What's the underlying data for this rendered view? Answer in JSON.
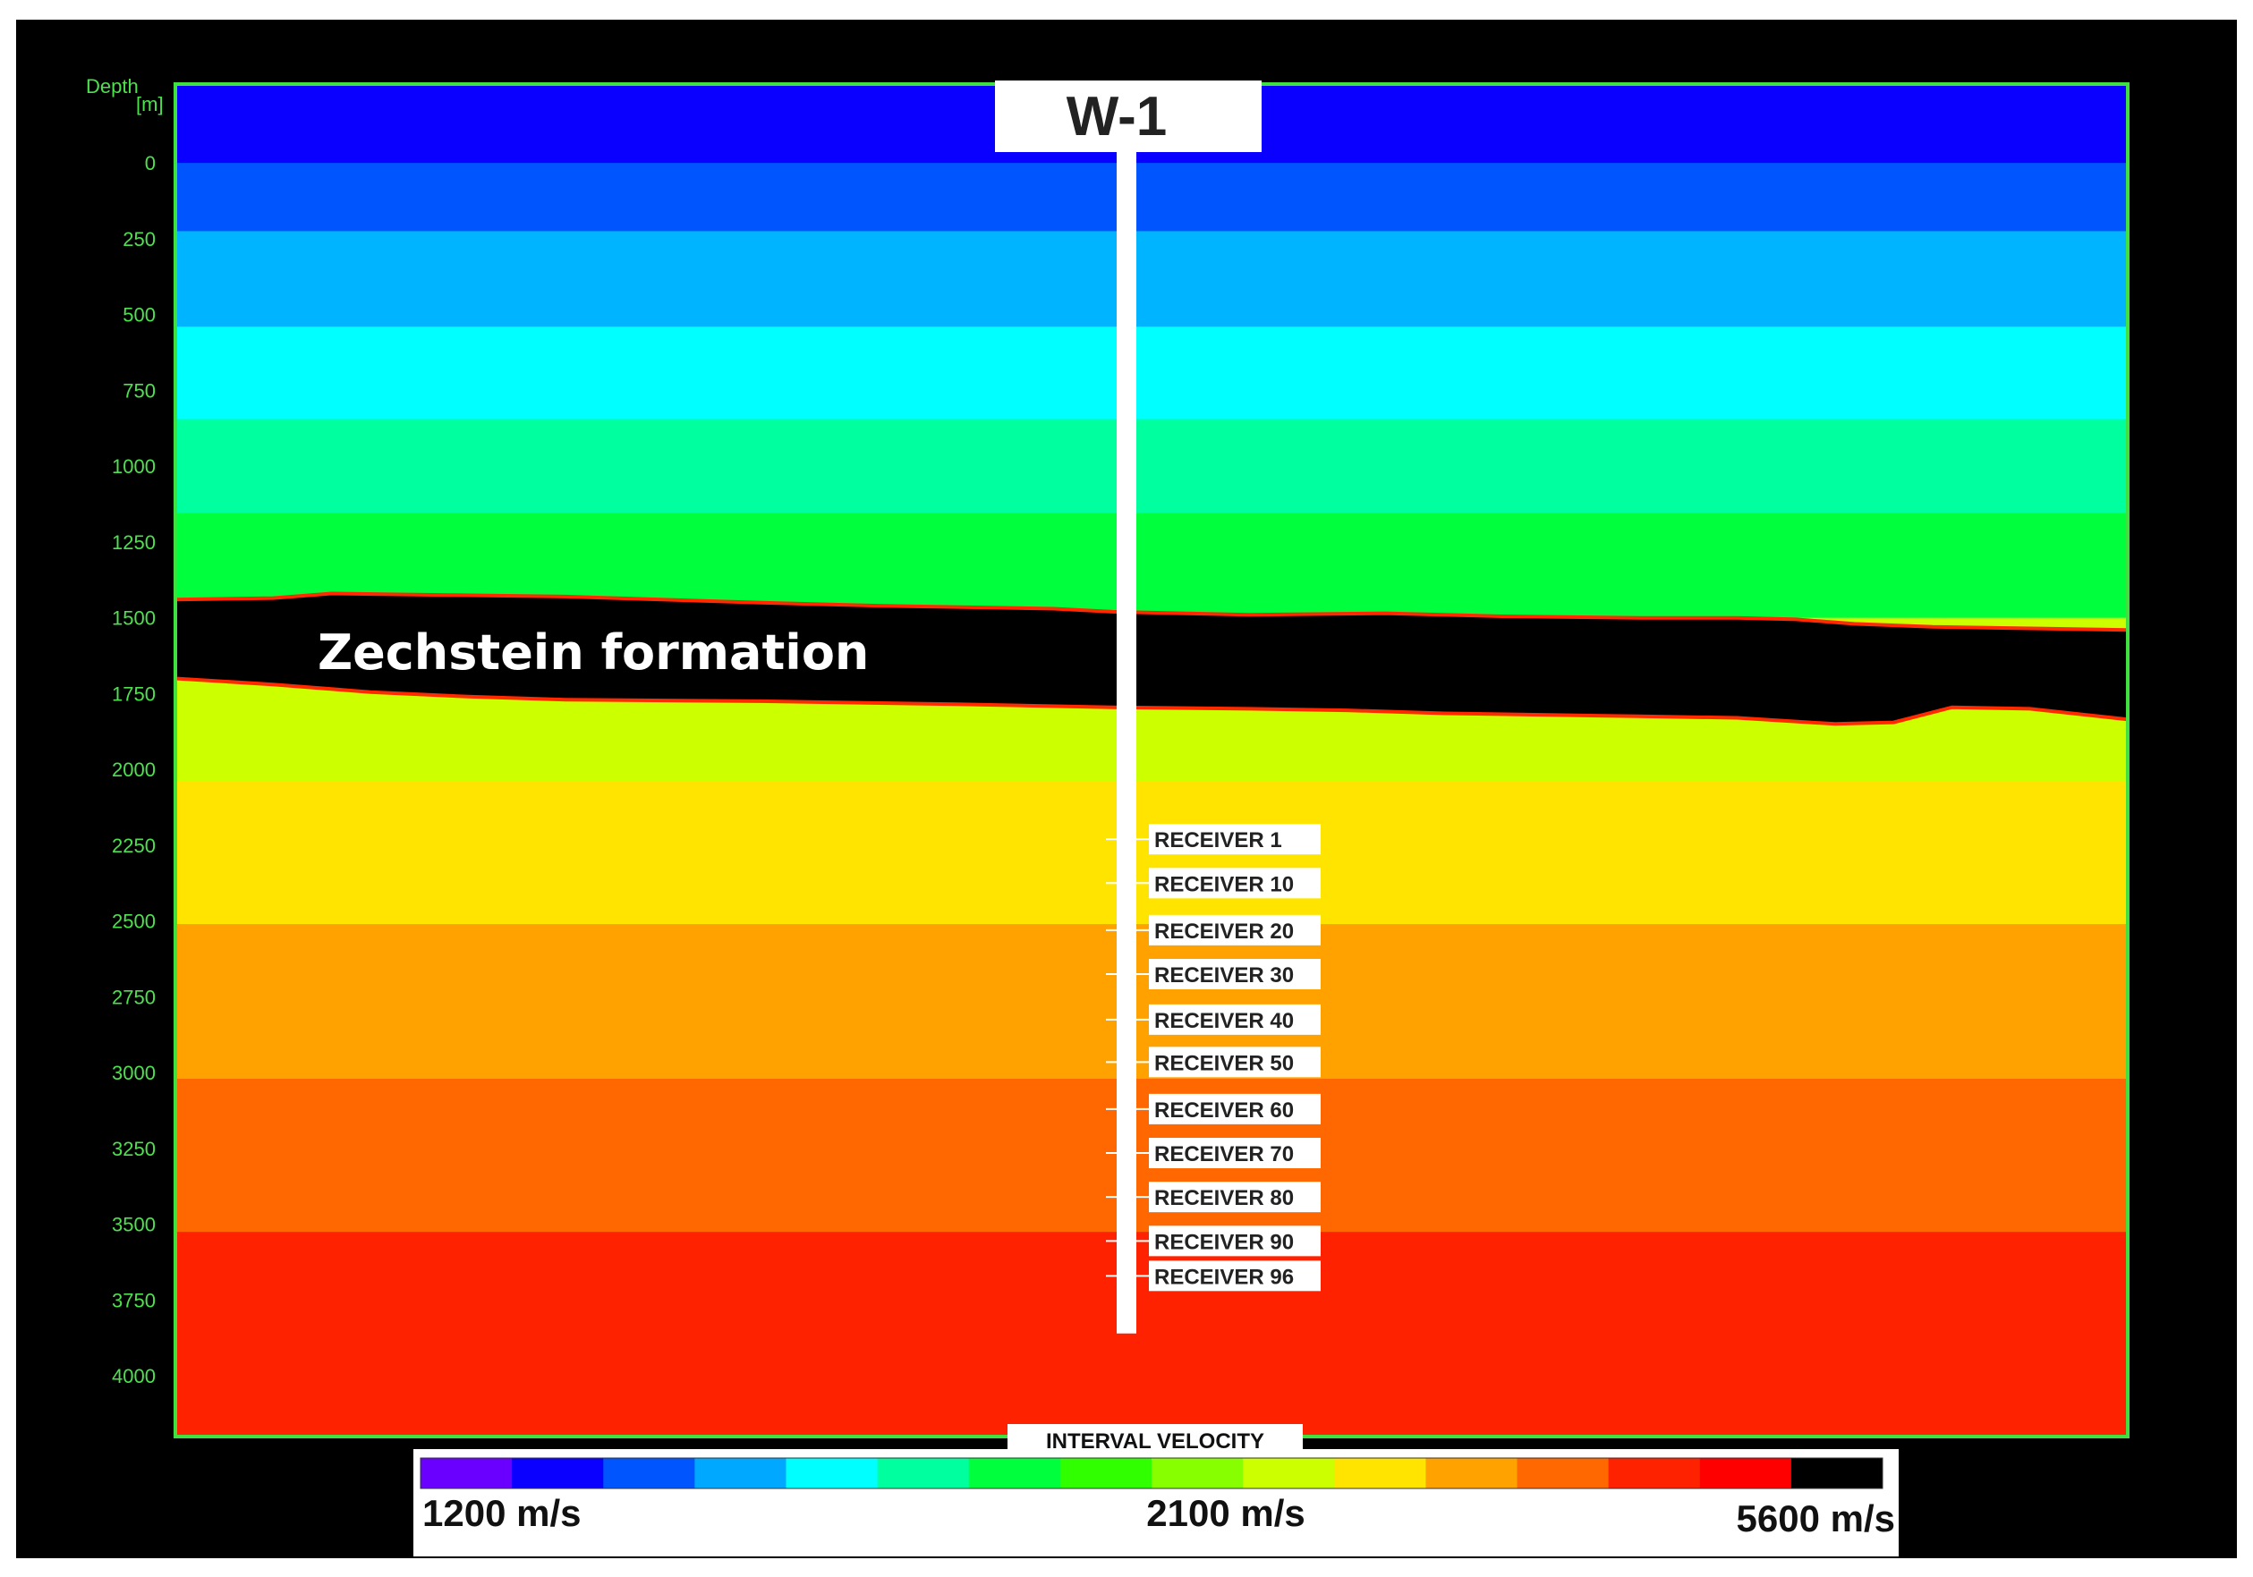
{
  "axis": {
    "title_line1": "Depth",
    "title_line2": "[m]",
    "depths": [
      0,
      250,
      500,
      750,
      1000,
      1250,
      1500,
      1750,
      2000,
      2250,
      2500,
      2750,
      3000,
      3250,
      3500,
      3750,
      4000
    ],
    "depth_labels": [
      "0",
      "250",
      "500",
      "750",
      "1000",
      "1250",
      "1500",
      "1750",
      "2000",
      "2250",
      "2500",
      "2750",
      "3000",
      "3250",
      "3500",
      "3750",
      "4000"
    ],
    "range_m": [
      -260,
      4200
    ]
  },
  "well": {
    "name": "W-1",
    "bottom_depth_m": 3860,
    "receivers": [
      {
        "label": "RECEIVER 1",
        "depth_m": 2230
      },
      {
        "label": "RECEIVER 10",
        "depth_m": 2375
      },
      {
        "label": "RECEIVER 20",
        "depth_m": 2530
      },
      {
        "label": "RECEIVER 30",
        "depth_m": 2675
      },
      {
        "label": "RECEIVER 40",
        "depth_m": 2825
      },
      {
        "label": "RECEIVER 50",
        "depth_m": 2965
      },
      {
        "label": "RECEIVER 60",
        "depth_m": 3120
      },
      {
        "label": "RECEIVER 70",
        "depth_m": 3265
      },
      {
        "label": "RECEIVER 80",
        "depth_m": 3410
      },
      {
        "label": "RECEIVER 90",
        "depth_m": 3555
      },
      {
        "label": "RECEIVER 96",
        "depth_m": 3670
      }
    ]
  },
  "layers": [
    {
      "top_m": -260,
      "bottom_m": 0,
      "color": "#0a00ff"
    },
    {
      "top_m": 0,
      "bottom_m": 225,
      "color": "#0055ff"
    },
    {
      "top_m": 225,
      "bottom_m": 540,
      "color": "#00b4ff"
    },
    {
      "top_m": 540,
      "bottom_m": 845,
      "color": "#00ffff"
    },
    {
      "top_m": 845,
      "bottom_m": 1155,
      "color": "#00ff9e"
    },
    {
      "top_m": 1155,
      "bottom_m": 1500,
      "color": "#00ff3c"
    },
    {
      "top_m": 1500,
      "bottom_m": 2040,
      "color": "#ccff00"
    },
    {
      "top_m": 2040,
      "bottom_m": 2510,
      "color": "#ffe400"
    },
    {
      "top_m": 2510,
      "bottom_m": 3020,
      "color": "#ffa200"
    },
    {
      "top_m": 3020,
      "bottom_m": 3525,
      "color": "#ff6800"
    },
    {
      "top_m": 3525,
      "bottom_m": 4200,
      "color": "#ff2200"
    }
  ],
  "zechstein": {
    "label": "Zechstein formation",
    "top_horizon": {
      "x_fraction": [
        0,
        0.05,
        0.08,
        0.14,
        0.2,
        0.3,
        0.36,
        0.45,
        0.48,
        0.55,
        0.62,
        0.68,
        0.75,
        0.8,
        0.83,
        0.86,
        0.9,
        0.95,
        1.0
      ],
      "depth_m": [
        1440,
        1435,
        1420,
        1425,
        1430,
        1450,
        1460,
        1470,
        1480,
        1490,
        1485,
        1495,
        1500,
        1500,
        1505,
        1520,
        1530,
        1535,
        1540
      ]
    },
    "base_horizon": {
      "x_fraction": [
        0,
        0.05,
        0.1,
        0.15,
        0.2,
        0.3,
        0.4,
        0.48,
        0.55,
        0.6,
        0.65,
        0.7,
        0.75,
        0.8,
        0.85,
        0.88,
        0.91,
        0.95,
        1.0
      ],
      "depth_m": [
        1700,
        1720,
        1745,
        1760,
        1770,
        1775,
        1785,
        1795,
        1800,
        1805,
        1815,
        1820,
        1825,
        1830,
        1850,
        1845,
        1795,
        1800,
        1835
      ]
    },
    "color": "#000000",
    "edge_color": "#ff2a00"
  },
  "legend": {
    "title": "INTERVAL VELOCITY",
    "min_label": "1200 m/s",
    "mid_label": "2100 m/s",
    "max_label": "5600 m/s",
    "colors": [
      "#6a00ff",
      "#0a00ff",
      "#0055ff",
      "#00a8ff",
      "#00ffff",
      "#00ff9e",
      "#00ff3c",
      "#30ff00",
      "#88ff00",
      "#ccff00",
      "#ffe400",
      "#ffa200",
      "#ff6800",
      "#ff2200",
      "#ff0000",
      "#000000"
    ]
  }
}
